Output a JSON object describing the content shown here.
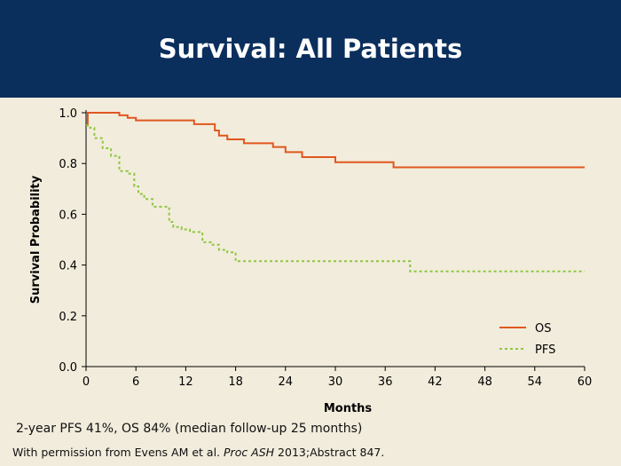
{
  "slide": {
    "title": "Survival: All Patients",
    "footnote": "2-year PFS 41%, OS 84% (median follow-up 25 months)",
    "citation": {
      "prefix": "With permission from Evens AM et al. ",
      "journal": "Proc ASH",
      "suffix": " 2013;Abstract 847."
    }
  },
  "chart_data": {
    "type": "line",
    "title": "",
    "xlabel": "Months",
    "ylabel": "Survival Probability",
    "xlim": [
      0,
      60
    ],
    "ylim": [
      0,
      1
    ],
    "x_ticks": [
      "0",
      "6",
      "12",
      "18",
      "24",
      "30",
      "36",
      "42",
      "48",
      "54",
      "60"
    ],
    "y_ticks": [
      "0.0",
      "0.2",
      "0.4",
      "0.6",
      "0.8",
      "1.0"
    ],
    "grid": false,
    "legend_position": "bottom-right",
    "series": [
      {
        "name": "OS",
        "style": "solid",
        "color": "#e0571f",
        "x": [
          0,
          0.2,
          4,
          5,
          6,
          13,
          15.5,
          16,
          17,
          19,
          22.5,
          24,
          26,
          30,
          37,
          60
        ],
        "y": [
          0.95,
          1.0,
          0.99,
          0.98,
          0.97,
          0.955,
          0.93,
          0.91,
          0.895,
          0.88,
          0.865,
          0.845,
          0.825,
          0.805,
          0.785,
          0.785
        ]
      },
      {
        "name": "PFS",
        "style": "dashed",
        "color": "#8dc63f",
        "x": [
          0,
          0.5,
          1,
          2,
          3,
          4,
          5,
          5.8,
          6.3,
          7,
          8,
          10,
          10.5,
          11.5,
          12.5,
          14,
          15,
          16,
          17,
          18,
          39,
          60
        ],
        "y": [
          0.95,
          0.94,
          0.9,
          0.86,
          0.83,
          0.77,
          0.76,
          0.71,
          0.68,
          0.66,
          0.63,
          0.57,
          0.55,
          0.54,
          0.53,
          0.49,
          0.48,
          0.46,
          0.45,
          0.415,
          0.375,
          0.375
        ]
      }
    ]
  }
}
